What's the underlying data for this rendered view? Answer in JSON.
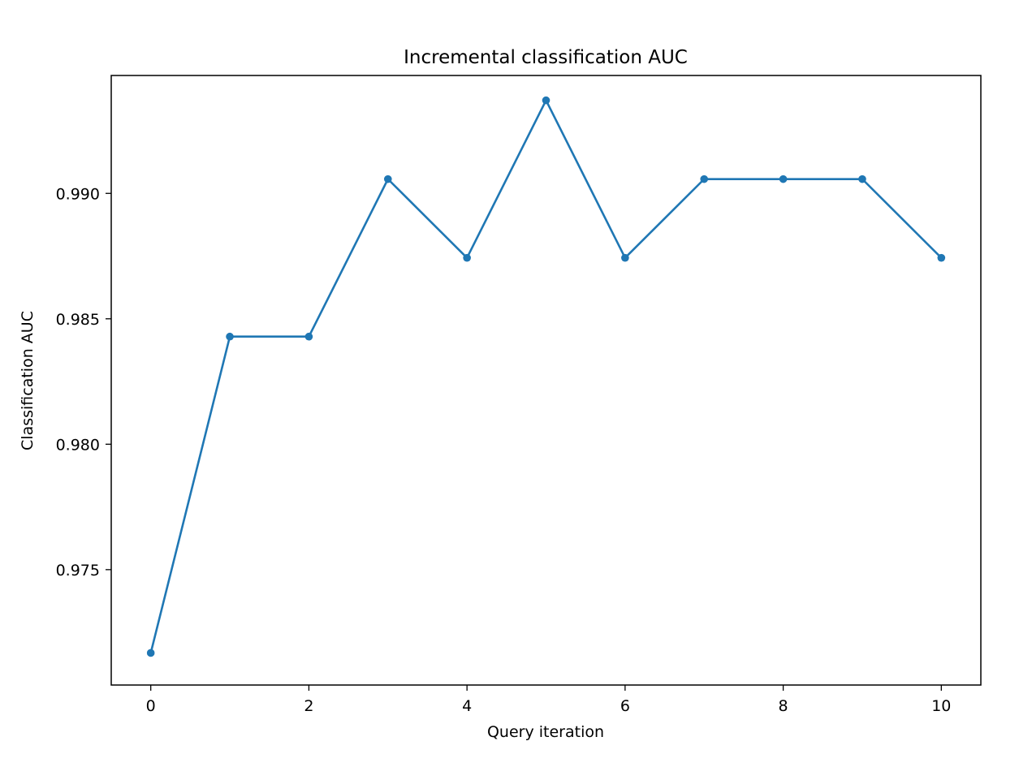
{
  "chart_data": {
    "type": "line",
    "title": "Incremental classification AUC",
    "xlabel": "Query iteration",
    "ylabel": "Classification AUC",
    "x": [
      0,
      1,
      2,
      3,
      4,
      5,
      6,
      7,
      8,
      9,
      10
    ],
    "series": [
      {
        "values": [
          0.97168,
          0.98429,
          0.98429,
          0.99057,
          0.98743,
          0.99371,
          0.98743,
          0.99057,
          0.99057,
          0.99057,
          0.98743
        ],
        "color": "#1f77b4",
        "marker": "circle"
      }
    ],
    "xlim": [
      -0.5,
      10.5
    ],
    "ylim": [
      0.9704,
      0.9947
    ],
    "xticks": [
      0,
      2,
      4,
      6,
      8,
      10
    ],
    "xtick_labels": [
      "0",
      "2",
      "4",
      "6",
      "8",
      "10"
    ],
    "yticks": [
      0.975,
      0.98,
      0.985,
      0.99
    ],
    "ytick_labels": [
      "0.975",
      "0.980",
      "0.985",
      "0.990"
    ],
    "grid": false,
    "legend": "none"
  }
}
